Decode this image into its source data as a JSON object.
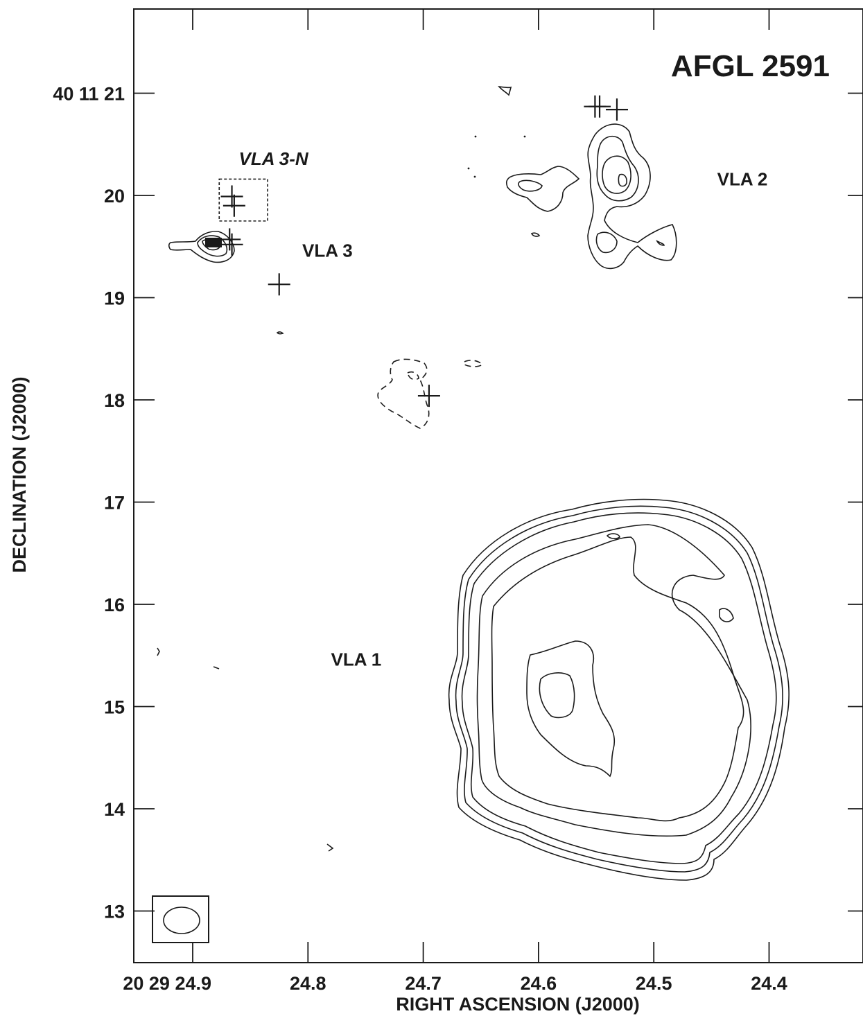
{
  "chart_data": {
    "type": "contour",
    "title": "AFGL 2591",
    "xlabel": "RIGHT ASCENSION (J2000)",
    "ylabel": "DECLINATION (J2000)",
    "x_axis": {
      "unit": "seconds of RA (20h29m)",
      "ticks": [
        24.9,
        24.8,
        24.7,
        24.6,
        24.5,
        24.4
      ],
      "tick_labels": [
        "20 29 24.9",
        "24.8",
        "24.7",
        "24.6",
        "24.5",
        "24.4"
      ],
      "range": [
        24.95,
        24.33
      ],
      "reversed": true
    },
    "y_axis": {
      "unit": "arcsec of Dec (+40d11m)",
      "ticks": [
        21,
        20,
        19,
        18,
        17,
        16,
        15,
        14,
        13
      ],
      "tick_labels": [
        "40 11 21",
        "20",
        "19",
        "18",
        "17",
        "16",
        "15",
        "14",
        "13"
      ],
      "range": [
        12.5,
        21.85
      ]
    },
    "sources": [
      {
        "label": "VLA 1",
        "ra": 24.78,
        "dec": 15.4,
        "italic": false
      },
      {
        "label": "VLA 2",
        "ra": 24.445,
        "dec": 20.1,
        "italic": false
      },
      {
        "label": "VLA 3",
        "ra": 24.805,
        "dec": 19.4,
        "italic": false
      },
      {
        "label": "VLA 3-N",
        "ra": 24.86,
        "dec": 20.3,
        "italic": true
      }
    ],
    "markers": [
      {
        "ra": 24.866,
        "dec": 19.99
      },
      {
        "ra": 24.864,
        "dec": 19.9
      },
      {
        "ra": 24.868,
        "dec": 19.57
      },
      {
        "ra": 24.866,
        "dec": 19.52
      },
      {
        "ra": 24.825,
        "dec": 19.13
      },
      {
        "ra": 24.551,
        "dec": 20.87
      },
      {
        "ra": 24.547,
        "dec": 20.87
      },
      {
        "ra": 24.532,
        "dec": 20.84
      },
      {
        "ra": 24.695,
        "dec": 18.04
      }
    ],
    "vla3n_box": {
      "ra": [
        24.877,
        24.835
      ],
      "dec": [
        19.75,
        20.16
      ]
    },
    "beam": {
      "ra": 24.89,
      "dec": 12.93,
      "major_arcsec": 0.27,
      "minor_arcsec": 0.25
    },
    "grid": false,
    "legend": "none"
  }
}
